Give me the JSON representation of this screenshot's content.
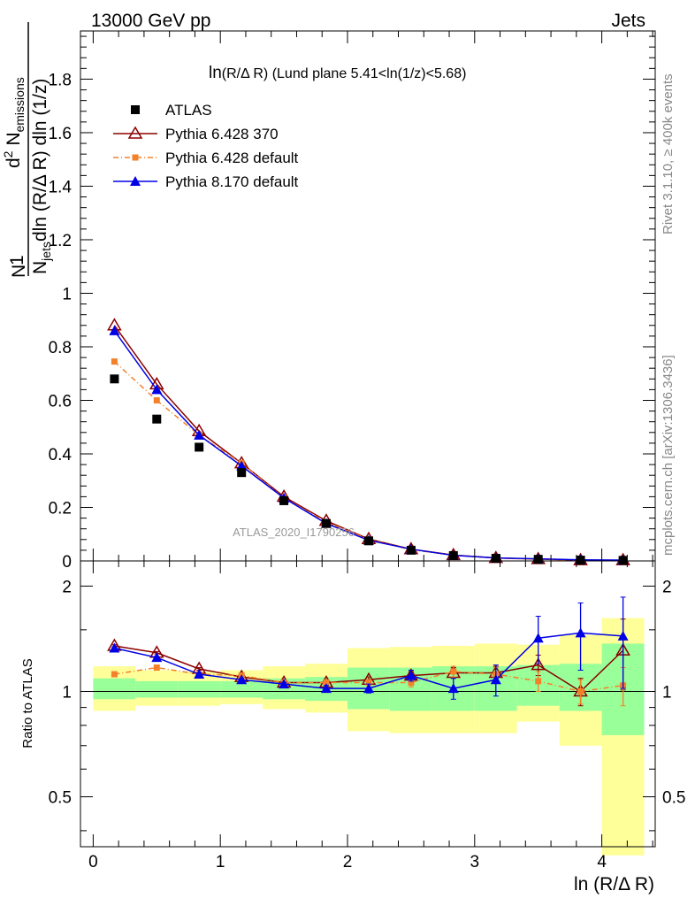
{
  "header": {
    "left": "13000 GeV pp",
    "right": "Jets"
  },
  "side_text": {
    "rivet": "Rivet 3.1.10, ≥ 400k events",
    "mcplots": "mcplots.cern.ch [arXiv:1306.3436]"
  },
  "colors": {
    "atlas": "#000000",
    "p6_370": "#8b0000",
    "p6_default": "#f4802a",
    "p8_default": "#0000e6",
    "band_yellow": "#ffff99",
    "band_green": "#99ff99"
  },
  "chart_data": [
    {
      "type": "line",
      "title_main": "ln",
      "title_rest": "(R/Δ R) (Lund plane 5.41<ln(1/z)<5.68)",
      "ylabel_parts": [
        "1",
        "N",
        "jets",
        "dln (R/Δ R) dln (1/z)",
        "d",
        "2",
        " N",
        "emissions"
      ],
      "watermark": "ATLAS_2020_I1790256",
      "xlim": [
        -0.1,
        4.42
      ],
      "ylim": [
        0,
        1.98
      ],
      "yticks": [
        0,
        0.2,
        0.4,
        0.6,
        0.8,
        1,
        1.2,
        1.4,
        1.6,
        1.8
      ],
      "ytick_labels": [
        "0",
        "0.2",
        "0.4",
        "0.6",
        "0.8",
        "1",
        "1.2",
        "1.4",
        "1.6",
        "1.8"
      ],
      "x": [
        0.167,
        0.5,
        0.833,
        1.167,
        1.5,
        1.833,
        2.167,
        2.5,
        2.833,
        3.167,
        3.5,
        3.833,
        4.167
      ],
      "legend": [
        "ATLAS",
        "Pythia 6.428 370",
        "Pythia 6.428 default",
        "Pythia 8.170 default"
      ],
      "series": [
        {
          "name": "ATLAS",
          "values": [
            0.68,
            0.53,
            0.425,
            0.33,
            0.225,
            0.14,
            0.075,
            0.04,
            0.02,
            0.01,
            0.006,
            0.003,
            0.002
          ]
        },
        {
          "name": "Pythia 6.428 370",
          "values": [
            0.88,
            0.66,
            0.485,
            0.365,
            0.24,
            0.15,
            0.082,
            0.044,
            0.022,
            0.011,
            0.007,
            0.003,
            0.003
          ]
        },
        {
          "name": "Pythia 6.428 default",
          "values": [
            0.745,
            0.6,
            0.47,
            0.365,
            0.235,
            0.145,
            0.08,
            0.042,
            0.022,
            0.011,
            0.006,
            0.003,
            0.002
          ]
        },
        {
          "name": "Pythia 8.170 default",
          "values": [
            0.86,
            0.64,
            0.47,
            0.355,
            0.235,
            0.14,
            0.077,
            0.044,
            0.021,
            0.011,
            0.008,
            0.004,
            0.003
          ]
        }
      ]
    },
    {
      "type": "line",
      "ylabel": "Ratio to ATLAS",
      "xlabel": "ln (R/Δ R)",
      "xlim": [
        -0.1,
        4.42
      ],
      "ylim": [
        0.36,
        2.36
      ],
      "log_y": true,
      "xticks": [
        0,
        1,
        2,
        3,
        4
      ],
      "xtick_labels": [
        "0",
        "1",
        "2",
        "3",
        "4"
      ],
      "yticks": [
        0.5,
        1,
        2
      ],
      "ytick_labels_left": [
        "0.5",
        "1",
        "2"
      ],
      "ytick_labels_right": [
        "0.5",
        "1",
        "2"
      ],
      "x": [
        0.167,
        0.5,
        0.833,
        1.167,
        1.5,
        1.833,
        2.167,
        2.5,
        2.833,
        3.167,
        3.5,
        3.833,
        4.167
      ],
      "bin_edges": [
        0,
        0.333,
        0.667,
        1.0,
        1.333,
        1.667,
        2.0,
        2.333,
        2.667,
        3.0,
        3.333,
        3.667,
        4.0,
        4.333
      ],
      "band_total": {
        "lo": [
          0.88,
          0.91,
          0.91,
          0.92,
          0.89,
          0.87,
          0.77,
          0.76,
          0.76,
          0.76,
          0.82,
          0.7,
          0.34
        ],
        "hi": [
          1.18,
          1.15,
          1.14,
          1.15,
          1.18,
          1.2,
          1.33,
          1.34,
          1.35,
          1.37,
          1.36,
          1.45,
          1.62
        ]
      },
      "band_stat": {
        "lo": [
          0.95,
          0.96,
          0.96,
          0.96,
          0.95,
          0.94,
          0.89,
          0.88,
          0.88,
          0.88,
          0.91,
          0.88,
          0.75
        ],
        "hi": [
          1.09,
          1.07,
          1.07,
          1.07,
          1.09,
          1.1,
          1.17,
          1.17,
          1.18,
          1.18,
          1.19,
          1.2,
          1.37
        ]
      },
      "reference_line": 1,
      "series": [
        {
          "name": "Pythia 6.428 370",
          "values": [
            1.35,
            1.29,
            1.16,
            1.1,
            1.06,
            1.06,
            1.08,
            1.11,
            1.13,
            1.13,
            1.19,
            1.0,
            1.31
          ],
          "err": [
            0.01,
            0.01,
            0.01,
            0.01,
            0.01,
            0.02,
            0.02,
            0.03,
            0.04,
            0.05,
            0.08,
            0.09,
            0.3
          ]
        },
        {
          "name": "Pythia 6.428 default",
          "values": [
            1.12,
            1.17,
            1.12,
            1.11,
            1.06,
            1.06,
            1.06,
            1.06,
            1.14,
            1.12,
            1.07,
            1.0,
            1.04
          ],
          "err": [
            0.01,
            0.01,
            0.01,
            0.01,
            0.01,
            0.02,
            0.02,
            0.03,
            0.04,
            0.05,
            0.07,
            0.08,
            0.13
          ]
        },
        {
          "name": "Pythia 8.170 default",
          "values": [
            1.33,
            1.25,
            1.12,
            1.08,
            1.05,
            1.02,
            1.02,
            1.11,
            1.02,
            1.08,
            1.42,
            1.47,
            1.44
          ],
          "err": [
            0.01,
            0.01,
            0.01,
            0.01,
            0.01,
            0.02,
            0.03,
            0.04,
            0.07,
            0.11,
            0.22,
            0.32,
            0.42
          ]
        }
      ]
    }
  ]
}
